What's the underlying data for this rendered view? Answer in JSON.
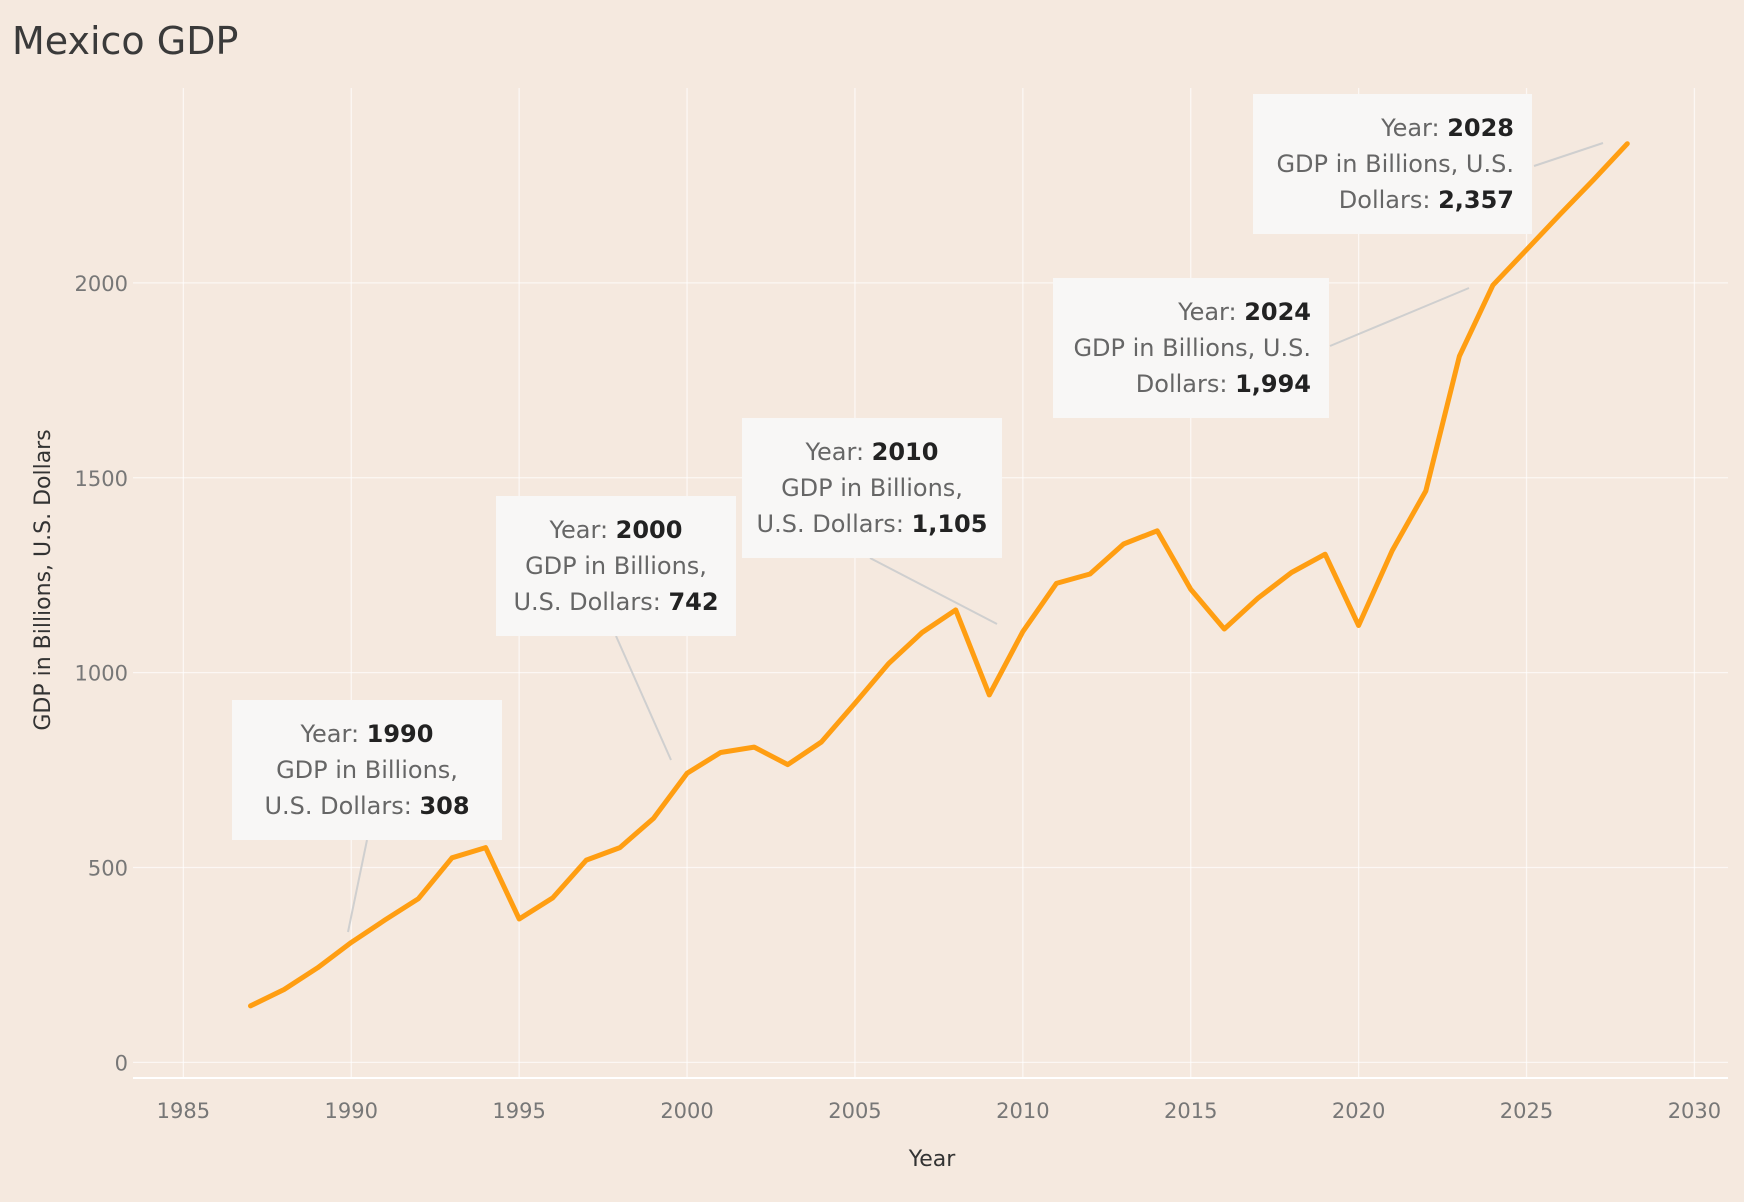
{
  "chart_data": {
    "type": "line",
    "title": "Mexico GDP",
    "xlabel": "Year",
    "ylabel": "GDP in Billions, U.S. Dollars",
    "xlim": [
      1983.5,
      2031
    ],
    "ylim": [
      -40,
      2500
    ],
    "x_ticks": [
      1985,
      1990,
      1995,
      2000,
      2005,
      2010,
      2015,
      2020,
      2025,
      2030
    ],
    "y_ticks": [
      0,
      500,
      1000,
      1500,
      2000
    ],
    "grid": true,
    "line_color": "#ff9e12",
    "series": [
      {
        "x": [
          1987,
          1988,
          1989,
          1990,
          1991,
          1992,
          1993,
          1994,
          1995,
          1996,
          1997,
          1998,
          1999,
          2000,
          2001,
          2002,
          2003,
          2004,
          2005,
          2006,
          2007,
          2008,
          2009,
          2010,
          2011,
          2012,
          2013,
          2014,
          2015,
          2016,
          2017,
          2018,
          2019,
          2020,
          2021,
          2022,
          2023,
          2024,
          2025,
          2026,
          2027,
          2028
        ],
        "values": [
          145,
          187,
          243,
          308,
          365,
          420,
          525,
          551,
          368,
          422,
          519,
          551,
          626,
          742,
          795,
          809,
          764,
          822,
          921,
          1023,
          1103,
          1161,
          943,
          1105,
          1229,
          1253,
          1330,
          1364,
          1214,
          1112,
          1191,
          1257,
          1304,
          1121,
          1313,
          1466,
          1812,
          1994,
          2085,
          2176,
          2265,
          2357
        ]
      }
    ],
    "annotations": [
      {
        "x": 1990,
        "lines": [
          [
            "Year: ",
            "1990"
          ],
          [
            "GDP in Billions,",
            ""
          ],
          [
            "U.S. Dollars: ",
            "308"
          ]
        ]
      },
      {
        "x": 2000,
        "lines": [
          [
            "Year: ",
            "2000"
          ],
          [
            "GDP in Billions,",
            ""
          ],
          [
            "U.S. Dollars: ",
            "742"
          ]
        ]
      },
      {
        "x": 2010,
        "lines": [
          [
            "Year: ",
            "2010"
          ],
          [
            "GDP in Billions,",
            ""
          ],
          [
            "U.S. Dollars: ",
            "1,105"
          ]
        ]
      },
      {
        "x": 2024,
        "lines": [
          [
            "Year: ",
            "2024"
          ],
          [
            "GDP in Billions, U.S.",
            ""
          ],
          [
            "Dollars: ",
            "1,994"
          ]
        ]
      },
      {
        "x": 2028,
        "lines": [
          [
            "Year: ",
            "2028"
          ],
          [
            "GDP in Billions, U.S.",
            ""
          ],
          [
            "Dollars: ",
            "2,357"
          ]
        ]
      }
    ]
  }
}
